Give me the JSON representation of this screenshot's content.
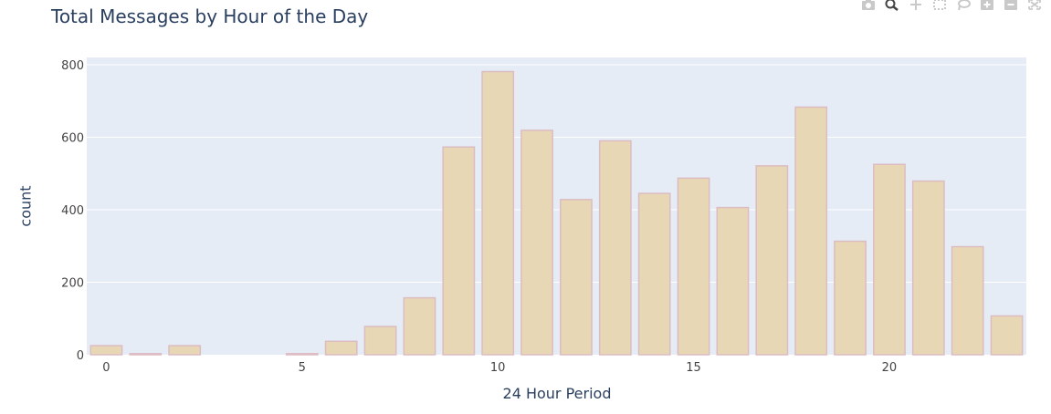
{
  "chart_data": {
    "type": "bar",
    "title": "Total Messages by Hour of the Day",
    "xlabel": "24 Hour Period",
    "ylabel": "count",
    "x": [
      0,
      1,
      2,
      3,
      4,
      5,
      6,
      7,
      8,
      9,
      10,
      11,
      12,
      13,
      14,
      15,
      16,
      17,
      18,
      19,
      20,
      21,
      22,
      23
    ],
    "values": [
      25,
      3,
      25,
      0,
      0,
      3,
      37,
      78,
      157,
      573,
      781,
      619,
      428,
      590,
      445,
      487,
      406,
      521,
      683,
      313,
      525,
      479,
      298,
      107
    ],
    "xlim": [
      -0.5,
      23.5
    ],
    "ylim": [
      0,
      820
    ],
    "xticks": [
      0,
      5,
      10,
      15,
      20
    ],
    "yticks": [
      0,
      200,
      400,
      600,
      800
    ],
    "grid": true,
    "bar_fill": "#e8d7b4",
    "bar_stroke": "#dcbcc2",
    "plot_bg": "#e5ecf6"
  },
  "modebar": {
    "icons": [
      "camera-icon",
      "zoom-icon",
      "pan-icon",
      "box-select-icon",
      "lasso-select-icon",
      "zoom-in-icon",
      "zoom-out-icon",
      "autoscale-icon"
    ]
  }
}
